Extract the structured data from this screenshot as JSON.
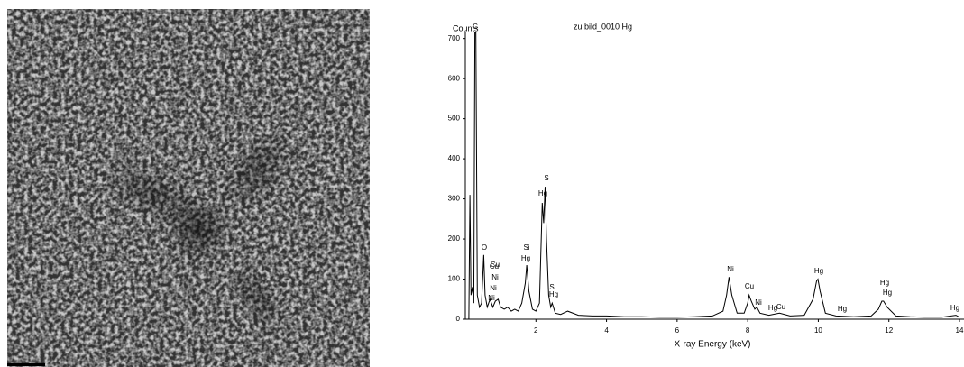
{
  "chart_data": {
    "type": "line",
    "title": "zu bild_0010 Hg",
    "y_label": "Counts",
    "x_label": "X-ray Energy (keV)",
    "x": [
      0.1,
      0.13,
      0.16,
      0.2,
      0.24,
      0.27,
      0.3,
      0.34,
      0.4,
      0.46,
      0.52,
      0.56,
      0.62,
      0.7,
      0.78,
      0.85,
      0.93,
      1.0,
      1.1,
      1.2,
      1.3,
      1.4,
      1.5,
      1.6,
      1.7,
      1.74,
      1.8,
      1.9,
      2.0,
      2.1,
      2.18,
      2.22,
      2.26,
      2.3,
      2.36,
      2.42,
      2.46,
      2.55,
      2.7,
      2.9,
      3.2,
      3.6,
      4.0,
      4.5,
      5.0,
      5.5,
      6.0,
      6.5,
      7.0,
      7.3,
      7.4,
      7.47,
      7.55,
      7.7,
      7.9,
      8.0,
      8.04,
      8.1,
      8.2,
      8.26,
      8.35,
      8.6,
      8.9,
      9.2,
      9.6,
      9.85,
      9.95,
      9.99,
      10.05,
      10.2,
      10.5,
      11.0,
      11.5,
      11.7,
      11.8,
      11.85,
      11.95,
      12.2,
      12.6,
      13.0,
      13.5,
      13.9,
      14.0
    ],
    "values": [
      0,
      310,
      60,
      80,
      40,
      715,
      715,
      60,
      30,
      40,
      160,
      60,
      30,
      50,
      30,
      45,
      50,
      30,
      25,
      30,
      20,
      25,
      20,
      40,
      90,
      135,
      70,
      25,
      20,
      40,
      290,
      240,
      330,
      200,
      60,
      30,
      40,
      15,
      12,
      20,
      10,
      8,
      8,
      6,
      6,
      5,
      5,
      6,
      8,
      20,
      60,
      105,
      60,
      15,
      15,
      40,
      60,
      45,
      25,
      30,
      15,
      10,
      15,
      8,
      10,
      50,
      95,
      100,
      70,
      15,
      8,
      6,
      8,
      25,
      45,
      45,
      30,
      8,
      6,
      5,
      5,
      10,
      5
    ],
    "color": "#000000",
    "xlim": [
      0,
      14
    ],
    "xticks": [
      2,
      4,
      6,
      8,
      10,
      12,
      14
    ],
    "ylim": [
      0,
      715
    ],
    "yticks": [
      0,
      100,
      200,
      300,
      400,
      500,
      600,
      700
    ],
    "annotations": [
      "C",
      "O",
      "Cu",
      "Cu",
      "Ni",
      "Ni",
      "Ni",
      "Si",
      "Hg",
      "S",
      "Hg",
      "S",
      "Hg",
      "Ni",
      "Cu",
      "Ni",
      "Hg",
      "Cu",
      "Hg",
      "Hg",
      "Hg",
      "Hg",
      "Hg"
    ]
  }
}
